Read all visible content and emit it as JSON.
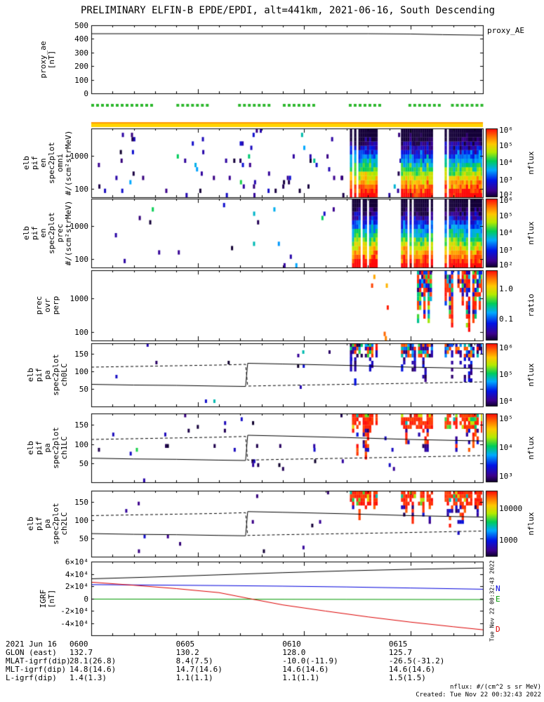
{
  "title": "PRELIMINARY ELFIN-B EPDE/EPDI, alt=441km, 2021-06-16, South Descending",
  "footer": {
    "nflux_units": "nflux: #/(cm^2 s sr MeV)",
    "created": "Created: Tue Nov 22 00:32:43 2022",
    "side_timestamp": "Tue Nov 22 00:32:43 2022"
  },
  "time_axis": {
    "t_end": 18.4,
    "date_label": "2021 Jun 16",
    "major_ticks": [
      {
        "t": 0,
        "label": "0600"
      },
      {
        "t": 5,
        "label": "0605"
      },
      {
        "t": 10,
        "label": "0610"
      },
      {
        "t": 15,
        "label": "0615"
      }
    ]
  },
  "bottom_rows": [
    {
      "label": "GLON (east)",
      "values": [
        "132.7",
        "130.2",
        "128.0",
        "125.7"
      ]
    },
    {
      "label": "MLAT-igrf(dip)",
      "values": [
        "28.1(26.8)",
        "8.4(7.5)",
        "-10.0(-11.9)",
        "-26.5(-31.2)"
      ]
    },
    {
      "label": "MLT-igrf(dip)",
      "values": [
        "14.8(14.6)",
        "14.7(14.6)",
        "14.6(14.6)",
        "14.6(14.6)"
      ]
    },
    {
      "label": "L-igrf(dip)",
      "values": [
        "1.4(1.3)",
        "1.1(1.1)",
        "1.1(1.1)",
        "1.5(1.5)"
      ]
    }
  ],
  "chart_data": [
    {
      "id": "proxy_ae",
      "type": "line",
      "ylabel_lines": [
        "proxy_ae",
        "[nT]"
      ],
      "right_label": "proxy_AE",
      "ylim": [
        0,
        500
      ],
      "yticks": [
        {
          "v": 500,
          "label": "500"
        },
        {
          "v": 400,
          "label": "400"
        },
        {
          "v": 300,
          "label": "300"
        },
        {
          "v": 200,
          "label": "200"
        },
        {
          "v": 100,
          "label": "100"
        },
        {
          "v": 0,
          "label": "0"
        }
      ],
      "series": [
        {
          "name": "proxy_AE",
          "color": "#000000",
          "points": [
            [
              0,
              438
            ],
            [
              13,
              438
            ],
            [
              15,
              436
            ],
            [
              16.5,
              431
            ],
            [
              18.4,
              427
            ]
          ]
        }
      ]
    },
    {
      "id": "science_zones",
      "type": "tick-markers",
      "color": "#2db82d",
      "segments": [
        [
          0,
          2.9
        ],
        [
          4,
          5.6
        ],
        [
          6.9,
          8.4
        ],
        [
          9,
          10.4
        ],
        [
          12.1,
          13.5
        ],
        [
          14.9,
          16.3
        ],
        [
          16.9,
          18.35
        ]
      ]
    },
    {
      "id": "mode_bar",
      "type": "solid-bar",
      "color": "#ffd400",
      "edge_color": "#ff9900"
    },
    {
      "id": "omni",
      "type": "spectrogram",
      "style": "energy",
      "seed": 101,
      "ylabel_lines": [
        "elb",
        "pif",
        "en",
        "spec2plot",
        "omni",
        "#/(scm²strMeV)"
      ],
      "yscale": "log",
      "ylim": [
        55,
        6800
      ],
      "yticks": [
        {
          "v": 1000,
          "label": "1000"
        },
        {
          "v": 100,
          "label": "100"
        }
      ],
      "colorbar": {
        "label": "nflux",
        "ticks": [
          {
            "f": 0.97,
            "label": "10⁶"
          },
          {
            "f": 0.75,
            "label": "10⁵"
          },
          {
            "f": 0.5,
            "label": "10⁴"
          },
          {
            "f": 0.25,
            "label": "10³"
          },
          {
            "f": 0.03,
            "label": "10²"
          }
        ]
      },
      "bursts": [
        {
          "t0": 12.15,
          "t1": 13.4
        },
        {
          "t0": 14.55,
          "t1": 15.95
        },
        {
          "t0": 16.6,
          "t1": 18.35
        }
      ],
      "sparse": [
        {
          "count": 70,
          "seed": 11,
          "tmin": 0.3,
          "tmax": 12,
          "v_base": 0,
          "v_spread": 0.22,
          "cyan_frac": 0.12
        },
        {
          "count": 8,
          "seed": 12,
          "tmin": 13.5,
          "tmax": 16.5,
          "v_base": 0,
          "v_spread": 0.22,
          "cyan_frac": 0.1
        }
      ]
    },
    {
      "id": "prec",
      "type": "spectrogram",
      "style": "energy",
      "seed": 202,
      "ylabel_lines": [
        "elb",
        "pif",
        "en",
        "spec2plot",
        "prec",
        "#/(scm²strMeV)"
      ],
      "yscale": "log",
      "ylim": [
        55,
        6800
      ],
      "yticks": [
        {
          "v": 1000,
          "label": "1000"
        },
        {
          "v": 100,
          "label": "100"
        }
      ],
      "colorbar": {
        "label": "nflux",
        "ticks": [
          {
            "f": 0.97,
            "label": "10⁶"
          },
          {
            "f": 0.75,
            "label": "10⁵"
          },
          {
            "f": 0.5,
            "label": "10⁴"
          },
          {
            "f": 0.25,
            "label": "10³"
          },
          {
            "f": 0.03,
            "label": "10²"
          }
        ]
      },
      "bursts": [
        {
          "t0": 12.15,
          "t1": 13.4
        },
        {
          "t0": 14.55,
          "t1": 15.95
        },
        {
          "t0": 16.6,
          "t1": 18.35
        }
      ],
      "sparse": [
        {
          "count": 20,
          "seed": 23,
          "tmin": 0.5,
          "tmax": 11.5,
          "v_base": 0,
          "v_spread": 0.22,
          "cyan_frac": 0.3
        }
      ]
    },
    {
      "id": "ratio",
      "type": "spectrogram",
      "style": "ratio",
      "seed": 303,
      "ylabel_lines": [
        "prec",
        "ovr",
        "perp"
      ],
      "yscale": "log",
      "ylim": [
        55,
        6800
      ],
      "yticks": [
        {
          "v": 1000,
          "label": "1000"
        },
        {
          "v": 100,
          "label": "100"
        }
      ],
      "colorbar": {
        "label": "ratio",
        "ticks": [
          {
            "f": 0.73,
            "label": "1.0"
          },
          {
            "f": 0.3,
            "label": "0.1"
          }
        ]
      },
      "bursts": [
        {
          "t0": 15.3,
          "t1": 15.95
        },
        {
          "t0": 16.6,
          "t1": 18.35
        }
      ],
      "sparse": [
        {
          "count": 6,
          "seed": 5,
          "tmin": 12.8,
          "tmax": 14.3,
          "v_base": 0.75,
          "v_spread": 0.25,
          "cyan_frac": 0
        }
      ]
    },
    {
      "id": "ch0LC",
      "type": "pa-spectrogram",
      "style": "mixed",
      "seed": 404,
      "ylabel_lines": [
        "elb",
        "pif",
        "pa",
        "spec2plot",
        "ch0LC"
      ],
      "ylim": [
        0,
        180
      ],
      "yticks": [
        {
          "v": 150,
          "label": "150"
        },
        {
          "v": 100,
          "label": "100"
        },
        {
          "v": 50,
          "label": "50"
        }
      ],
      "colorbar": {
        "label": "nflux",
        "ticks": [
          {
            "f": 0.92,
            "label": "10⁶"
          },
          {
            "f": 0.5,
            "label": "10⁵"
          },
          {
            "f": 0.08,
            "label": "10⁴"
          }
        ]
      },
      "lines": {
        "solid": [
          [
            0,
            63
          ],
          [
            2,
            61
          ],
          [
            4,
            60
          ],
          [
            6,
            58
          ],
          [
            7.25,
            57
          ],
          [
            7.35,
            123
          ],
          [
            9,
            121
          ],
          [
            12,
            117
          ],
          [
            15,
            112
          ],
          [
            18.4,
            108
          ]
        ],
        "dashed": [
          [
            0,
            112
          ],
          [
            2,
            114
          ],
          [
            4,
            116
          ],
          [
            6,
            118
          ],
          [
            7.25,
            120
          ],
          [
            7.35,
            58
          ],
          [
            9,
            60
          ],
          [
            12,
            63
          ],
          [
            15,
            66
          ],
          [
            18.4,
            70
          ]
        ]
      },
      "bursts": [
        {
          "t0": 12.15,
          "t1": 13.4
        },
        {
          "t0": 14.55,
          "t1": 15.95
        },
        {
          "t0": 16.6,
          "t1": 18.35
        }
      ],
      "sparse": [
        {
          "count": 14,
          "seed": 31,
          "tmin": 0.5,
          "tmax": 14.5,
          "v_base": 0,
          "v_spread": 0.22,
          "cyan_frac": 0.08
        }
      ]
    },
    {
      "id": "ch1LC",
      "type": "pa-spectrogram",
      "style": "red",
      "seed": 505,
      "ylabel_lines": [
        "elb",
        "pif",
        "pa",
        "spec2plot",
        "ch1LC"
      ],
      "ylim": [
        0,
        180
      ],
      "yticks": [
        {
          "v": 150,
          "label": "150"
        },
        {
          "v": 100,
          "label": "100"
        },
        {
          "v": 50,
          "label": "50"
        }
      ],
      "colorbar": {
        "label": "nflux",
        "ticks": [
          {
            "f": 0.92,
            "label": "10⁵"
          },
          {
            "f": 0.5,
            "label": "10⁴"
          },
          {
            "f": 0.08,
            "label": "10³"
          }
        ]
      },
      "lines": {
        "solid": [
          [
            0,
            63
          ],
          [
            2,
            61
          ],
          [
            4,
            60
          ],
          [
            6,
            58
          ],
          [
            7.25,
            57
          ],
          [
            7.35,
            123
          ],
          [
            9,
            121
          ],
          [
            12,
            117
          ],
          [
            15,
            112
          ],
          [
            18.4,
            108
          ]
        ],
        "dashed": [
          [
            0,
            112
          ],
          [
            2,
            114
          ],
          [
            4,
            116
          ],
          [
            6,
            118
          ],
          [
            7.25,
            120
          ],
          [
            7.35,
            58
          ],
          [
            9,
            60
          ],
          [
            12,
            63
          ],
          [
            15,
            66
          ],
          [
            18.4,
            70
          ]
        ]
      },
      "bursts": [
        {
          "t0": 12.15,
          "t1": 13.4
        },
        {
          "t0": 14.55,
          "t1": 15.95
        },
        {
          "t0": 16.6,
          "t1": 18.35
        }
      ],
      "sparse": [
        {
          "count": 30,
          "seed": 41,
          "tmin": 0.3,
          "tmax": 12.2,
          "v_base": 0,
          "v_spread": 0.22,
          "cyan_frac": 0.05
        },
        {
          "count": 4,
          "seed": 42,
          "tmin": 13.5,
          "tmax": 14.5,
          "v_base": 0,
          "v_spread": 0.22,
          "cyan_frac": 0
        }
      ]
    },
    {
      "id": "ch2LC",
      "type": "pa-spectrogram",
      "style": "red",
      "seed": 606,
      "ylabel_lines": [
        "elb",
        "pif",
        "pa",
        "spec2plot",
        "ch2LC"
      ],
      "ylim": [
        0,
        180
      ],
      "yticks": [
        {
          "v": 150,
          "label": "150"
        },
        {
          "v": 100,
          "label": "100"
        },
        {
          "v": 50,
          "label": "50"
        }
      ],
      "colorbar": {
        "label": "nflux",
        "ticks": [
          {
            "f": 0.72,
            "label": "10000"
          },
          {
            "f": 0.24,
            "label": "1000"
          }
        ]
      },
      "lines": {
        "solid": [
          [
            0,
            63
          ],
          [
            2,
            61
          ],
          [
            4,
            60
          ],
          [
            6,
            58
          ],
          [
            7.25,
            57
          ],
          [
            7.35,
            123
          ],
          [
            9,
            121
          ],
          [
            12,
            117
          ],
          [
            15,
            112
          ],
          [
            18.4,
            108
          ]
        ],
        "dashed": [
          [
            0,
            112
          ],
          [
            2,
            114
          ],
          [
            4,
            116
          ],
          [
            6,
            118
          ],
          [
            7.25,
            120
          ],
          [
            7.35,
            58
          ],
          [
            9,
            60
          ],
          [
            12,
            63
          ],
          [
            15,
            66
          ],
          [
            18.4,
            70
          ]
        ]
      },
      "bursts": [
        {
          "t0": 12.15,
          "t1": 13.4
        },
        {
          "t0": 14.55,
          "t1": 15.95
        },
        {
          "t0": 16.6,
          "t1": 18.35
        }
      ],
      "sparse": [
        {
          "count": 13,
          "seed": 51,
          "tmin": 0.5,
          "tmax": 12,
          "v_base": 0,
          "v_spread": 0.22,
          "cyan_frac": 0.05
        }
      ]
    },
    {
      "id": "igrf",
      "type": "line",
      "ylabel_lines": [
        "IGRF",
        "[nT]"
      ],
      "ylim": [
        -60000,
        60000
      ],
      "yticks": [
        {
          "v": 60000,
          "label": "6×10⁴"
        },
        {
          "v": 40000,
          "label": "4×10⁴"
        },
        {
          "v": 20000,
          "label": "2×10⁴"
        },
        {
          "v": 0,
          "label": "0"
        },
        {
          "v": -20000,
          "label": "-2×10⁴"
        },
        {
          "v": -40000,
          "label": "-4×10⁴"
        }
      ],
      "series": [
        {
          "name": "Bmag",
          "color": "#000000",
          "points": [
            [
              0,
              32000
            ],
            [
              3,
              35000
            ],
            [
              6,
              38500
            ],
            [
              9,
              42000
            ],
            [
              12,
              45000
            ],
            [
              15,
              47500
            ],
            [
              18.4,
              49500
            ]
          ]
        },
        {
          "name": "N",
          "label": "N",
          "color": "#0000dd",
          "points": [
            [
              0,
              22500
            ],
            [
              3,
              21800
            ],
            [
              6,
              21000
            ],
            [
              9,
              20000
            ],
            [
              12,
              18700
            ],
            [
              15,
              17000
            ],
            [
              18.4,
              15000
            ]
          ]
        },
        {
          "name": "E",
          "label": "E",
          "color": "#009900",
          "points": [
            [
              0,
              -1000
            ],
            [
              6,
              -1200
            ],
            [
              12,
              -1500
            ],
            [
              18.4,
              -1800
            ]
          ]
        },
        {
          "name": "D",
          "label": "D",
          "color": "#dd0000",
          "points": [
            [
              0,
              26500
            ],
            [
              2,
              21500
            ],
            [
              4,
              16000
            ],
            [
              6,
              9500
            ],
            [
              7.4,
              0
            ],
            [
              9,
              -10500
            ],
            [
              11,
              -20500
            ],
            [
              13,
              -30000
            ],
            [
              15,
              -38500
            ],
            [
              17,
              -46000
            ],
            [
              18.4,
              -51000
            ]
          ]
        }
      ]
    }
  ]
}
